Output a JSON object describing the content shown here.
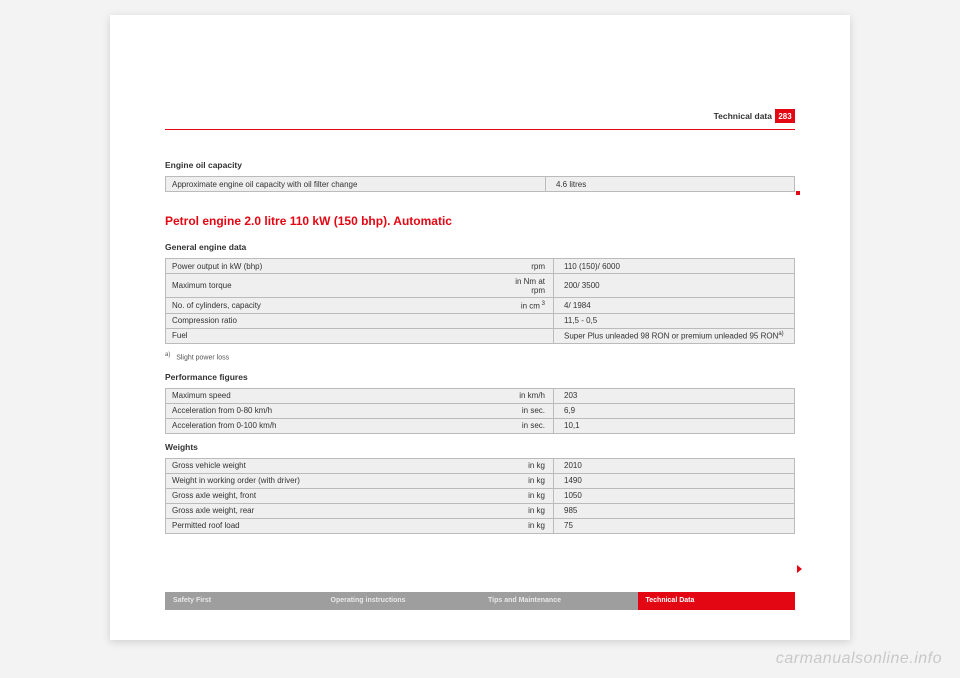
{
  "header": {
    "section": "Technical data",
    "pageNumber": "283"
  },
  "colors": {
    "accent": "#e30613",
    "tableBg": "#efefef",
    "tabInactive": "#9e9e9e"
  },
  "engineOil": {
    "title": "Engine oil capacity",
    "rows": [
      {
        "label": "Approximate engine oil capacity with oil filter change",
        "value": "4.6 litres"
      }
    ]
  },
  "engineHeading": "Petrol engine 2.0 litre 110 kW (150 bhp). Automatic",
  "generalEngine": {
    "title": "General engine data",
    "rows": [
      {
        "label": "Power output in kW (bhp)",
        "unit": "rpm",
        "value": "110 (150)/ 6000"
      },
      {
        "label": "Maximum torque",
        "unit": "in Nm at rpm",
        "value": "200/ 3500"
      },
      {
        "label": "No. of cylinders, capacity",
        "unit": "in cm",
        "unitSup": "3",
        "value": "4/ 1984"
      },
      {
        "label": "Compression ratio",
        "unit": "",
        "value": "11,5 - 0,5"
      },
      {
        "label": "Fuel",
        "unit": "",
        "value": "Super Plus unleaded 98 RON or premium unleaded 95 RON",
        "valueSup": "a)"
      }
    ],
    "footnote": {
      "mark": "a)",
      "text": "Slight power loss"
    }
  },
  "performance": {
    "title": "Performance figures",
    "rows": [
      {
        "label": "Maximum speed",
        "unit": "in km/h",
        "value": "203"
      },
      {
        "label": "Acceleration from 0-80 km/h",
        "unit": "in sec.",
        "value": "6,9"
      },
      {
        "label": "Acceleration from 0-100 km/h",
        "unit": "in sec.",
        "value": "10,1"
      }
    ]
  },
  "weights": {
    "title": "Weights",
    "rows": [
      {
        "label": "Gross vehicle weight",
        "unit": "in kg",
        "value": "2010"
      },
      {
        "label": "Weight in working order (with driver)",
        "unit": "in kg",
        "value": "1490"
      },
      {
        "label": "Gross axle weight, front",
        "unit": "in kg",
        "value": "1050"
      },
      {
        "label": "Gross axle weight, rear",
        "unit": "in kg",
        "value": "985"
      },
      {
        "label": "Permitted roof load",
        "unit": "in kg",
        "value": "75"
      }
    ]
  },
  "tabs": [
    {
      "label": "Safety First",
      "active": false
    },
    {
      "label": "Operating instructions",
      "active": false
    },
    {
      "label": "Tips and Maintenance",
      "active": false
    },
    {
      "label": "Technical Data",
      "active": true
    }
  ],
  "watermark": "carmanualsonline.info"
}
